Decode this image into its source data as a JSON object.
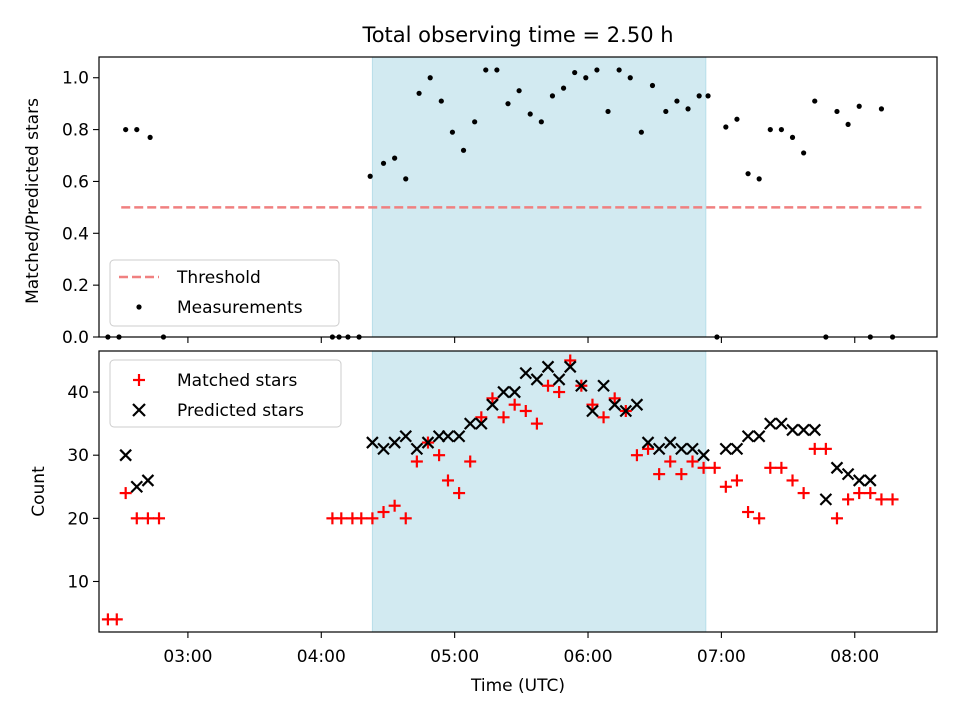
{
  "chart_data": [
    {
      "type": "scatter",
      "title": "Total observing time = 2.50 h",
      "ylabel": "Matched/Predicted stars",
      "xlabel": "",
      "ylim": [
        0,
        1.08
      ],
      "yticks": [
        "0.0",
        "0.2",
        "0.4",
        "0.6",
        "0.8",
        "1.0"
      ],
      "xlim": [
        "02:20",
        "08:37"
      ],
      "shaded_range": [
        "04:23",
        "06:53"
      ],
      "legend": {
        "placement": "lower-left",
        "entries": [
          "Threshold",
          "Measurements"
        ]
      },
      "threshold": {
        "name": "Threshold",
        "value": 0.5,
        "x": [
          "02:30",
          "08:30"
        ],
        "color": "#f08080"
      },
      "series": [
        {
          "name": "Measurements",
          "color": "#000000",
          "x": [
            "02:24",
            "02:29",
            "02:32",
            "02:37",
            "02:43",
            "02:49",
            "04:05",
            "04:08",
            "04:12",
            "04:17",
            "04:22",
            "04:28",
            "04:33",
            "04:38",
            "04:44",
            "04:49",
            "04:54",
            "04:59",
            "05:04",
            "05:09",
            "05:14",
            "05:19",
            "05:24",
            "05:29",
            "05:34",
            "05:39",
            "05:44",
            "05:49",
            "05:54",
            "05:59",
            "06:04",
            "06:09",
            "06:14",
            "06:19",
            "06:24",
            "06:29",
            "06:35",
            "06:40",
            "06:45",
            "06:50",
            "06:54",
            "06:58",
            "07:02",
            "07:07",
            "07:12",
            "07:17",
            "07:22",
            "07:27",
            "07:32",
            "07:37",
            "07:42",
            "07:47",
            "07:52",
            "07:57",
            "08:02",
            "08:07",
            "08:12",
            "08:17"
          ],
          "y": [
            0,
            0,
            0.8,
            0.8,
            0.77,
            0,
            0,
            0,
            0,
            0,
            0.62,
            0.67,
            0.69,
            0.61,
            0.94,
            1.0,
            0.91,
            0.79,
            0.72,
            0.83,
            1.03,
            1.03,
            0.9,
            0.95,
            0.86,
            0.83,
            0.93,
            0.96,
            1.02,
            1.0,
            1.03,
            0.87,
            1.03,
            1.0,
            0.79,
            0.97,
            0.87,
            0.91,
            0.88,
            0.93,
            0.93,
            0,
            0.81,
            0.84,
            0.63,
            0.61,
            0.8,
            0.8,
            0.77,
            0.71,
            0.91,
            0,
            0.87,
            0.82,
            0.89,
            0,
            0.88,
            0
          ]
        }
      ]
    },
    {
      "type": "scatter",
      "title": "",
      "xlabel": "Time (UTC)",
      "ylabel": "Count",
      "ylim": [
        2,
        46.5
      ],
      "yticks": [
        "10",
        "20",
        "30",
        "40"
      ],
      "xlim": [
        "02:20",
        "08:37"
      ],
      "xticks": [
        "03:00",
        "04:00",
        "05:00",
        "06:00",
        "07:00",
        "08:00"
      ],
      "shaded_range": [
        "04:23",
        "06:53"
      ],
      "legend": {
        "placement": "upper-left",
        "entries": [
          "Matched stars",
          "Predicted stars"
        ]
      },
      "series": [
        {
          "name": "Matched stars",
          "marker": "plus",
          "color": "#ff0000",
          "x": [
            "02:24",
            "02:28",
            "02:32",
            "02:37",
            "02:42",
            "02:47",
            "04:05",
            "04:09",
            "04:14",
            "04:18",
            "04:23",
            "04:28",
            "04:33",
            "04:38",
            "04:43",
            "04:48",
            "04:53",
            "04:57",
            "05:02",
            "05:07",
            "05:12",
            "05:17",
            "05:22",
            "05:27",
            "05:32",
            "05:37",
            "05:42",
            "05:47",
            "05:52",
            "05:57",
            "06:02",
            "06:07",
            "06:12",
            "06:17",
            "06:22",
            "06:27",
            "06:32",
            "06:37",
            "06:42",
            "06:47",
            "06:52",
            "06:57",
            "07:02",
            "07:07",
            "07:12",
            "07:17",
            "07:22",
            "07:27",
            "07:32",
            "07:37",
            "07:42",
            "07:47",
            "07:52",
            "07:57",
            "08:02",
            "08:07",
            "08:12",
            "08:17"
          ],
          "y": [
            4,
            4,
            24,
            20,
            20,
            20,
            20,
            20,
            20,
            20,
            20,
            21,
            22,
            20,
            29,
            32,
            30,
            26,
            24,
            29,
            36,
            39,
            36,
            38,
            37,
            35,
            41,
            40,
            45,
            41,
            38,
            36,
            39,
            37,
            30,
            31,
            27,
            29,
            27,
            29,
            28,
            28,
            25,
            26,
            21,
            20,
            28,
            28,
            26,
            24,
            31,
            31,
            20,
            23,
            24,
            24,
            23,
            23
          ]
        },
        {
          "name": "Predicted stars",
          "marker": "cross",
          "color": "#000000",
          "x": [
            "02:32",
            "02:37",
            "02:42",
            "04:23",
            "04:28",
            "04:33",
            "04:38",
            "04:43",
            "04:48",
            "04:53",
            "04:57",
            "05:02",
            "05:07",
            "05:12",
            "05:17",
            "05:22",
            "05:27",
            "05:32",
            "05:37",
            "05:42",
            "05:47",
            "05:52",
            "05:57",
            "06:02",
            "06:07",
            "06:12",
            "06:17",
            "06:22",
            "06:27",
            "06:32",
            "06:37",
            "06:42",
            "06:47",
            "06:52",
            "07:02",
            "07:07",
            "07:12",
            "07:17",
            "07:22",
            "07:27",
            "07:32",
            "07:37",
            "07:42",
            "07:47",
            "07:52",
            "07:57",
            "08:02",
            "08:07"
          ],
          "y": [
            30,
            25,
            26,
            32,
            31,
            32,
            33,
            31,
            32,
            33,
            33,
            33,
            35,
            35,
            38,
            40,
            40,
            43,
            42,
            44,
            42,
            44,
            41,
            37,
            41,
            38,
            37,
            38,
            32,
            31,
            32,
            31,
            31,
            30,
            31,
            31,
            33,
            33,
            35,
            35,
            34,
            34,
            34,
            23,
            28,
            27,
            26,
            26
          ]
        }
      ]
    }
  ]
}
